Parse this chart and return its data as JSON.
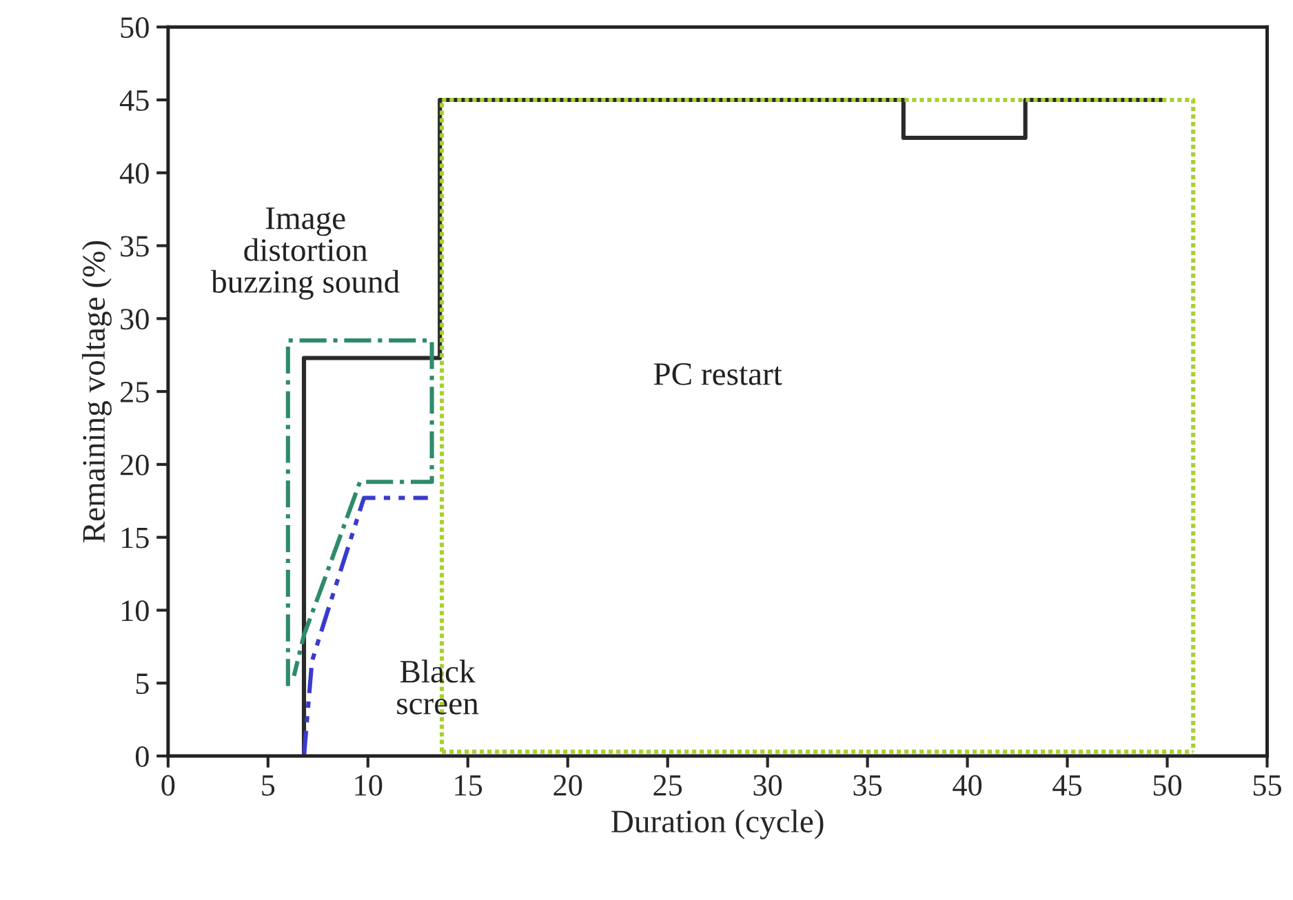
{
  "chart_data": {
    "type": "line",
    "xlabel": "Duration (cycle)",
    "ylabel": "Remaining voltage (%)",
    "xlim": [
      0,
      55
    ],
    "xticks": [
      0,
      5,
      10,
      15,
      20,
      25,
      30,
      35,
      40,
      45,
      50,
      55
    ],
    "ylim": [
      0,
      50
    ],
    "yticks": [
      0,
      5,
      10,
      15,
      20,
      25,
      30,
      35,
      40,
      45,
      50
    ],
    "grid": false,
    "legend": false,
    "marker": "none",
    "series": [
      {
        "color": "#2a2a2a",
        "line_style": "solid",
        "x": [
          6.8,
          6.8,
          13.6,
          13.6,
          36.8,
          36.8,
          42.9,
          42.9,
          49.8
        ],
        "values": [
          0,
          27.3,
          27.3,
          45,
          45,
          42.4,
          42.4,
          45,
          45
        ]
      },
      {
        "color": "#2e8b6a",
        "line_style": "dashdot",
        "x": [
          6.0,
          6.0,
          13.2,
          13.2,
          9.6,
          7.8,
          6.8,
          6.3
        ],
        "values": [
          4.8,
          28.5,
          28.5,
          18.8,
          18.8,
          12,
          8.3,
          5.5
        ]
      },
      {
        "color": "#3a3acc",
        "line_style": "dashdotdot",
        "x": [
          6.8,
          7.2,
          8.0,
          9.8,
          13.0
        ],
        "values": [
          0,
          6.5,
          10,
          17.7,
          17.7
        ]
      },
      {
        "color": "#a8d030",
        "line_style": "dotted",
        "x": [
          13.7,
          13.7,
          51.3,
          51.3
        ],
        "values": [
          0.3,
          45,
          45,
          0.3
        ]
      },
      {
        "color": "#a8d030",
        "line_style": "dotted",
        "x": [
          13.7,
          51.3
        ],
        "values": [
          0.3,
          0.3
        ]
      }
    ],
    "annotations": [
      "Image\ndistortion\nbuzzing sound",
      "Black\nscreen",
      "PC restart"
    ]
  }
}
